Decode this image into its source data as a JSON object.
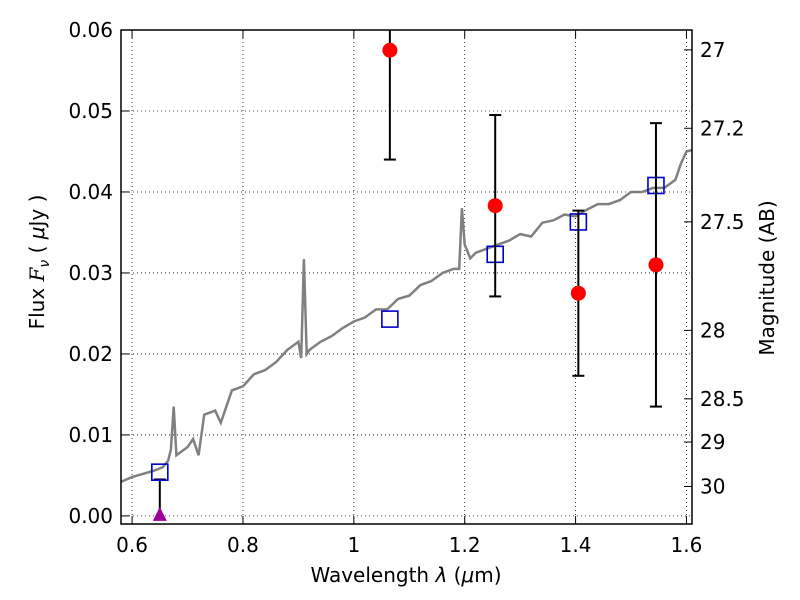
{
  "chart_data": {
    "type": "scatter",
    "title": "",
    "xlabel_prefix": "Wavelength  ",
    "xlabel_symbol": "λ",
    "xlabel_suffix": " (",
    "xlabel_mu": "μ",
    "xlabel_unit": "m)",
    "ylabel_prefix": "Flux  ",
    "ylabel_symbol": "F",
    "ylabel_sub": "ν",
    "ylabel_paren_open": "  ( ",
    "ylabel_mu": "μ",
    "ylabel_unit": "Jy )",
    "y2label": "Magnitude (AB)",
    "xlim": [
      0.58,
      1.61
    ],
    "ylim": [
      -0.001,
      0.06
    ],
    "grid": true,
    "grid_style": "dotted",
    "x_ticks": [
      0.6,
      0.8,
      1.0,
      1.2,
      1.4,
      1.6
    ],
    "x_tick_labels": [
      "0.6",
      "0.8",
      "1",
      "1.2",
      "1.4",
      "1.6"
    ],
    "y_ticks": [
      0.0,
      0.01,
      0.02,
      0.03,
      0.04,
      0.05,
      0.06
    ],
    "y_tick_labels": [
      "0.00",
      "0.01",
      "0.02",
      "0.03",
      "0.04",
      "0.05",
      "0.06"
    ],
    "y2_ticks": [
      {
        "label": "27",
        "mag": 27.0
      },
      {
        "label": "27.2",
        "mag": 27.2
      },
      {
        "label": "27.5",
        "mag": 27.5
      },
      {
        "label": "28",
        "mag": 28.0
      },
      {
        "label": "28.5",
        "mag": 28.5
      },
      {
        "label": "29",
        "mag": 29.0
      },
      {
        "label": "30",
        "mag": 30.0
      }
    ],
    "colors": {
      "model": "#808080",
      "observed": "#ff0000",
      "errorbar": "#000000",
      "model_photometry": "#0000cc",
      "upper_limit": "#990099"
    },
    "series": [
      {
        "kind": "model-spectrum",
        "x": [
          0.58,
          0.6,
          0.62,
          0.64,
          0.655,
          0.665,
          0.67,
          0.675,
          0.68,
          0.7,
          0.71,
          0.72,
          0.73,
          0.75,
          0.76,
          0.78,
          0.8,
          0.82,
          0.84,
          0.86,
          0.88,
          0.9,
          0.905,
          0.91,
          0.915,
          0.92,
          0.94,
          0.96,
          0.98,
          1.0,
          1.02,
          1.04,
          1.06,
          1.08,
          1.1,
          1.12,
          1.14,
          1.16,
          1.18,
          1.19,
          1.195,
          1.2,
          1.21,
          1.22,
          1.24,
          1.26,
          1.28,
          1.3,
          1.32,
          1.34,
          1.36,
          1.38,
          1.4,
          1.42,
          1.44,
          1.46,
          1.48,
          1.5,
          1.52,
          1.54,
          1.56,
          1.58,
          1.59,
          1.6,
          1.61
        ],
        "y": [
          0.0042,
          0.0048,
          0.0052,
          0.0056,
          0.006,
          0.0068,
          0.0082,
          0.0135,
          0.0075,
          0.0085,
          0.0095,
          0.0075,
          0.0125,
          0.013,
          0.0115,
          0.0155,
          0.016,
          0.0175,
          0.018,
          0.019,
          0.0205,
          0.0215,
          0.0195,
          0.0317,
          0.02,
          0.0205,
          0.0215,
          0.0222,
          0.0232,
          0.024,
          0.0245,
          0.0255,
          0.0255,
          0.0268,
          0.0272,
          0.0285,
          0.029,
          0.03,
          0.0305,
          0.0305,
          0.038,
          0.0335,
          0.0318,
          0.0325,
          0.033,
          0.0335,
          0.034,
          0.0348,
          0.0345,
          0.0362,
          0.0365,
          0.0372,
          0.037,
          0.0378,
          0.0385,
          0.0385,
          0.039,
          0.04,
          0.04,
          0.0405,
          0.0405,
          0.0415,
          0.0435,
          0.045,
          0.0452
        ]
      },
      {
        "kind": "observed",
        "x": [
          1.065,
          1.255,
          1.405,
          1.545
        ],
        "y": [
          0.0575,
          0.0383,
          0.0275,
          0.031
        ],
        "err": [
          0.0135,
          0.0112,
          0.0102,
          0.0175
        ]
      },
      {
        "kind": "model-photometry",
        "x": [
          0.65,
          1.065,
          1.255,
          1.405,
          1.545
        ],
        "y": [
          0.0054,
          0.0243,
          0.0323,
          0.0363,
          0.0408
        ]
      },
      {
        "kind": "upper-limit",
        "x": [
          0.65
        ],
        "y": [
          0.0
        ],
        "err_top": 0.0045
      }
    ]
  }
}
